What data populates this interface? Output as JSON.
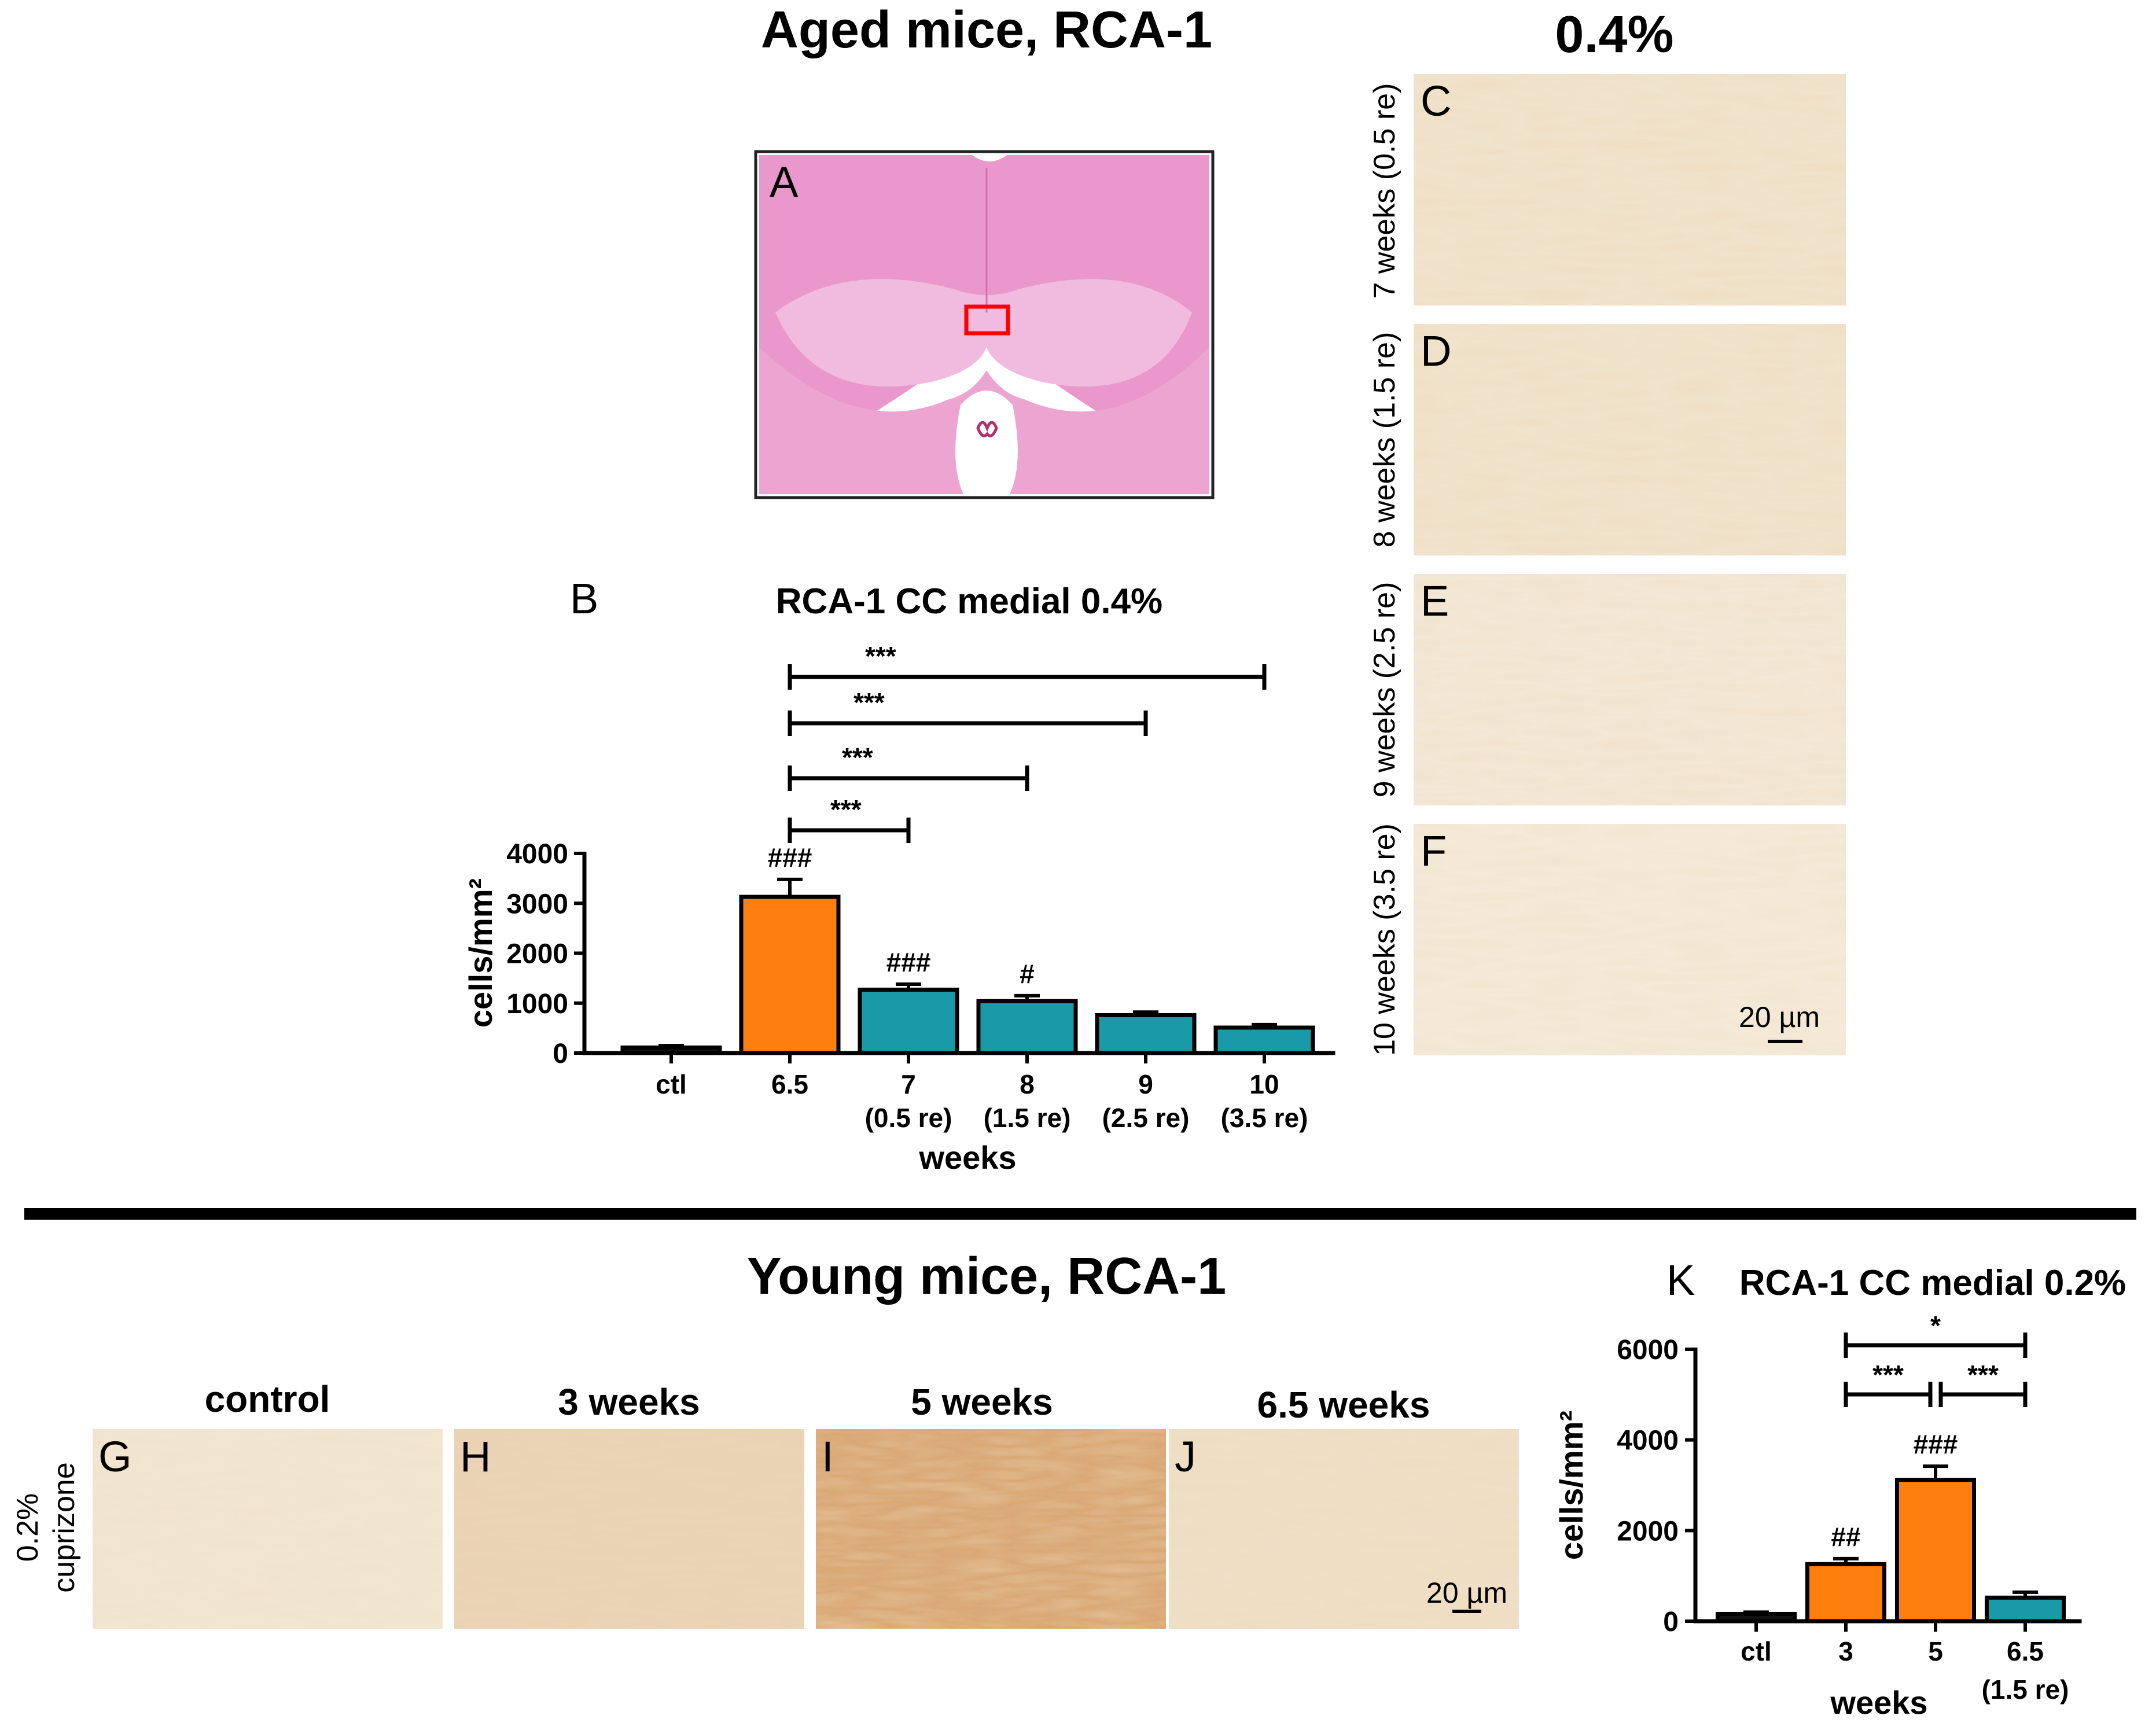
{
  "header": {
    "aged_title": "Aged mice, RCA-1",
    "col_title_04": "0.4%",
    "young_title": "Young mice, RCA-1"
  },
  "panels": {
    "A": "A",
    "B": "B",
    "C": "C",
    "D": "D",
    "E": "E",
    "F": "F",
    "G": "G",
    "H": "H",
    "I": "I",
    "J": "J",
    "K": "K"
  },
  "micrographs_aged": [
    {
      "panel": "C",
      "row_label": "7 weeks (0.5 re)"
    },
    {
      "panel": "D",
      "row_label": "8 weeks (1.5 re)"
    },
    {
      "panel": "E",
      "row_label": "9 weeks (2.5 re)"
    },
    {
      "panel": "F",
      "row_label": "10 weeks (3.5 re)"
    }
  ],
  "micrographs_young": {
    "row_label_line1": "0.2%",
    "row_label_line2": "cuprizone",
    "items": [
      {
        "panel": "G",
        "title": "control"
      },
      {
        "panel": "H",
        "title": "3 weeks"
      },
      {
        "panel": "I",
        "title": "5 weeks"
      },
      {
        "panel": "J",
        "title": "6.5 weeks"
      }
    ]
  },
  "scale_bar": "20 µm",
  "colors": {
    "control": "#111111",
    "cuprizone": "#ff7f0e",
    "remyelination": "#1a9aa8",
    "stain_bg": "#f1e6d2",
    "he_pink": "#e98fc7",
    "roi_box": "#ff0000"
  },
  "chart_data": [
    {
      "id": "B",
      "type": "bar",
      "title": "RCA-1 CC medial 0.4%",
      "xlabel": "weeks",
      "ylabel": "cells/mm²",
      "ylim": [
        0,
        4000
      ],
      "yticks": [
        0,
        1000,
        2000,
        3000,
        4000
      ],
      "categories": [
        {
          "line1": "ctl",
          "line2": ""
        },
        {
          "line1": "6.5",
          "line2": ""
        },
        {
          "line1": "7",
          "line2": "(0.5 re)"
        },
        {
          "line1": "8",
          "line2": "(1.5 re)"
        },
        {
          "line1": "9",
          "line2": "(2.5 re)"
        },
        {
          "line1": "10",
          "line2": "(3.5 re)"
        }
      ],
      "values": [
        110,
        3130,
        1270,
        1040,
        760,
        510
      ],
      "errors": [
        40,
        350,
        110,
        110,
        60,
        60
      ],
      "groups": [
        "control",
        "cuprizone",
        "remyelination",
        "remyelination",
        "remyelination",
        "remyelination"
      ],
      "bar_labels": [
        "",
        "###",
        "###",
        "#",
        "",
        ""
      ],
      "comparisons": [
        {
          "from": 1,
          "to": 2,
          "label": "***"
        },
        {
          "from": 1,
          "to": 3,
          "label": "***"
        },
        {
          "from": 1,
          "to": 4,
          "label": "***"
        },
        {
          "from": 1,
          "to": 5,
          "label": "***"
        }
      ]
    },
    {
      "id": "K",
      "type": "bar",
      "title": "RCA-1 CC medial 0.2%",
      "xlabel": "weeks",
      "ylabel": "cells/mm²",
      "ylim": [
        0,
        6000
      ],
      "yticks": [
        0,
        2000,
        4000,
        6000
      ],
      "categories": [
        {
          "line1": "ctl",
          "line2": ""
        },
        {
          "line1": "3",
          "line2": ""
        },
        {
          "line1": "5",
          "line2": ""
        },
        {
          "line1": "6.5",
          "line2": "(1.5 re)"
        }
      ],
      "values": [
        160,
        1260,
        3120,
        520
      ],
      "errors": [
        40,
        120,
        300,
        120
      ],
      "groups": [
        "control",
        "cuprizone",
        "cuprizone",
        "remyelination"
      ],
      "bar_labels": [
        "",
        "##",
        "###",
        ""
      ],
      "comparisons": [
        {
          "from": 1,
          "to": 3,
          "label": "*"
        },
        {
          "from": 1,
          "to": 2,
          "label": "***"
        },
        {
          "from": 2,
          "to": 3,
          "label": "***"
        }
      ]
    }
  ]
}
